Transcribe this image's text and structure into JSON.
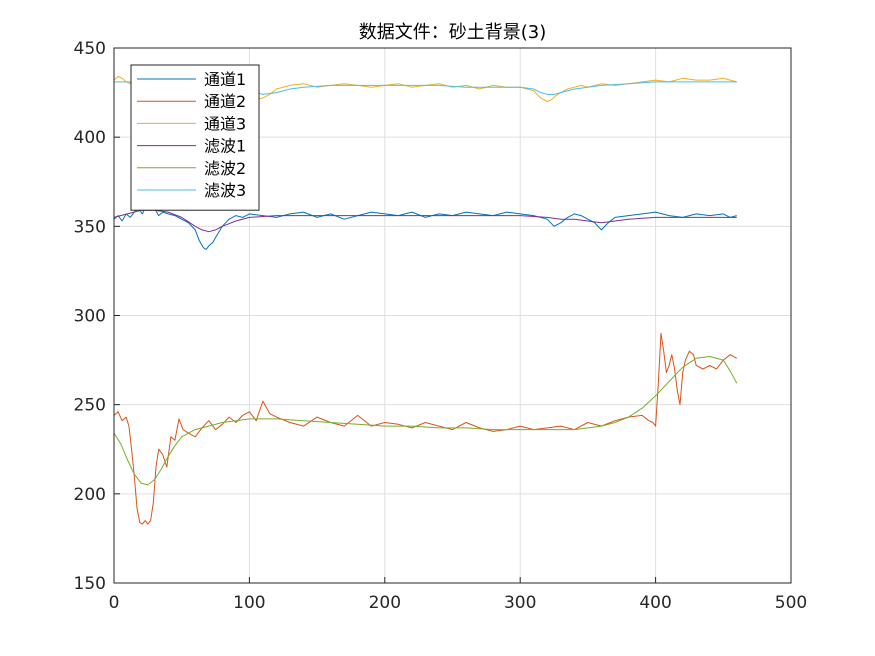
{
  "chart_data": {
    "type": "line",
    "title": "数据文件：砂土背景(3)",
    "xlabel": "",
    "ylabel": "",
    "xlim": [
      0,
      500
    ],
    "ylim": [
      150,
      450
    ],
    "xticks": [
      0,
      100,
      200,
      300,
      400,
      500
    ],
    "yticks": [
      150,
      200,
      250,
      300,
      350,
      400,
      450
    ],
    "grid": true,
    "legend_position": "top-left",
    "series": [
      {
        "name": "通道1",
        "color": "#0072BD",
        "x": [
          0,
          3,
          6,
          9,
          12,
          15,
          18,
          21,
          24,
          27,
          30,
          33,
          36,
          40,
          45,
          50,
          55,
          60,
          63,
          66,
          68,
          70,
          73,
          76,
          80,
          85,
          90,
          95,
          100,
          110,
          120,
          130,
          140,
          150,
          160,
          170,
          180,
          190,
          200,
          210,
          220,
          230,
          240,
          250,
          260,
          270,
          280,
          290,
          300,
          310,
          320,
          325,
          330,
          335,
          340,
          345,
          350,
          355,
          360,
          365,
          370,
          380,
          390,
          400,
          410,
          420,
          430,
          440,
          450,
          455,
          460
        ],
        "y": [
          354,
          356,
          353,
          357,
          355,
          358,
          360,
          357,
          362,
          359,
          360,
          356,
          358,
          357,
          356,
          354,
          352,
          348,
          342,
          338,
          337,
          339,
          341,
          345,
          350,
          354,
          356,
          355,
          357,
          356,
          355,
          357,
          358,
          355,
          357,
          354,
          356,
          358,
          357,
          356,
          358,
          355,
          357,
          356,
          358,
          357,
          356,
          358,
          357,
          356,
          354,
          350,
          352,
          355,
          357,
          356,
          354,
          352,
          348,
          352,
          355,
          356,
          357,
          358,
          356,
          355,
          357,
          356,
          357,
          355,
          356
        ]
      },
      {
        "name": "通道2",
        "color": "#D95319",
        "x": [
          0,
          3,
          6,
          9,
          11,
          13,
          15,
          17,
          19,
          21,
          23,
          25,
          27,
          29,
          31,
          33,
          36,
          39,
          42,
          45,
          48,
          51,
          55,
          60,
          65,
          70,
          75,
          80,
          85,
          90,
          95,
          100,
          105,
          110,
          115,
          120,
          130,
          140,
          150,
          160,
          170,
          180,
          190,
          200,
          210,
          220,
          230,
          240,
          250,
          260,
          270,
          280,
          290,
          300,
          310,
          320,
          330,
          340,
          350,
          360,
          370,
          380,
          390,
          395,
          398,
          400,
          402,
          404,
          406,
          408,
          410,
          412,
          414,
          416,
          418,
          420,
          422,
          425,
          428,
          430,
          435,
          440,
          445,
          450,
          455,
          460
        ],
        "y": [
          244,
          246,
          241,
          243,
          238,
          225,
          210,
          192,
          184,
          183,
          185,
          183,
          185,
          195,
          215,
          225,
          222,
          215,
          232,
          230,
          242,
          236,
          234,
          232,
          237,
          241,
          236,
          239,
          243,
          240,
          244,
          246,
          241,
          252,
          245,
          243,
          240,
          238,
          243,
          240,
          238,
          244,
          238,
          240,
          239,
          237,
          240,
          238,
          236,
          240,
          237,
          235,
          236,
          238,
          236,
          237,
          238,
          236,
          240,
          238,
          241,
          243,
          244,
          241,
          240,
          238,
          262,
          290,
          280,
          268,
          272,
          278,
          270,
          258,
          250,
          268,
          275,
          280,
          278,
          272,
          270,
          272,
          270,
          275,
          278,
          276
        ]
      },
      {
        "name": "通道3",
        "color": "#EDB120",
        "x": [
          0,
          3,
          6,
          9,
          12,
          15,
          18,
          21,
          24,
          27,
          30,
          35,
          40,
          45,
          50,
          55,
          60,
          65,
          70,
          75,
          80,
          85,
          90,
          95,
          100,
          105,
          110,
          115,
          120,
          130,
          140,
          150,
          160,
          170,
          180,
          190,
          200,
          210,
          220,
          230,
          240,
          250,
          260,
          270,
          280,
          290,
          300,
          305,
          310,
          315,
          320,
          323,
          326,
          330,
          335,
          340,
          345,
          350,
          360,
          370,
          380,
          390,
          400,
          410,
          420,
          430,
          440,
          450,
          455,
          460
        ],
        "y": [
          432,
          434,
          433,
          431,
          430,
          435,
          433,
          431,
          434,
          432,
          430,
          432,
          433,
          431,
          432,
          433,
          431,
          430,
          432,
          431,
          429,
          428,
          427,
          426,
          424,
          421,
          422,
          424,
          427,
          429,
          430,
          428,
          429,
          430,
          429,
          428,
          429,
          430,
          428,
          429,
          430,
          428,
          429,
          427,
          429,
          428,
          428,
          427,
          426,
          422,
          420,
          421,
          423,
          425,
          427,
          428,
          429,
          428,
          430,
          429,
          430,
          431,
          432,
          431,
          433,
          432,
          432,
          433,
          432,
          431
        ]
      },
      {
        "name": "滤波1",
        "color": "#7E2F8E",
        "x": [
          0,
          10,
          20,
          30,
          40,
          50,
          60,
          65,
          70,
          75,
          80,
          90,
          100,
          120,
          140,
          160,
          180,
          200,
          220,
          240,
          260,
          280,
          300,
          320,
          330,
          340,
          350,
          360,
          370,
          380,
          400,
          420,
          440,
          460
        ],
        "y": [
          355,
          357,
          359,
          359,
          358,
          355,
          350,
          348,
          347,
          348,
          350,
          353,
          355,
          356,
          356,
          356,
          356,
          356,
          356,
          356,
          356,
          356,
          356,
          355,
          354,
          354,
          353,
          352,
          353,
          354,
          355,
          355,
          355,
          355
        ]
      },
      {
        "name": "滤波2",
        "color": "#77AC30",
        "x": [
          0,
          5,
          10,
          15,
          20,
          25,
          30,
          35,
          40,
          45,
          50,
          60,
          70,
          80,
          90,
          100,
          110,
          120,
          140,
          160,
          180,
          200,
          220,
          240,
          260,
          280,
          300,
          320,
          340,
          360,
          370,
          380,
          390,
          400,
          410,
          420,
          430,
          440,
          450,
          455,
          460
        ],
        "y": [
          234,
          228,
          219,
          211,
          206,
          205,
          208,
          214,
          221,
          227,
          232,
          236,
          238,
          240,
          241,
          242,
          242,
          242,
          241,
          240,
          239,
          238,
          238,
          237,
          237,
          236,
          236,
          236,
          236,
          238,
          240,
          243,
          248,
          255,
          263,
          271,
          276,
          277,
          275,
          269,
          262
        ]
      },
      {
        "name": "滤波3",
        "color": "#4DBEEE",
        "x": [
          0,
          10,
          20,
          30,
          40,
          50,
          60,
          70,
          80,
          90,
          100,
          110,
          120,
          130,
          140,
          160,
          180,
          200,
          220,
          240,
          260,
          280,
          300,
          310,
          315,
          320,
          325,
          330,
          340,
          350,
          360,
          380,
          400,
          420,
          440,
          460
        ],
        "y": [
          431,
          431,
          431,
          431,
          431,
          431,
          431,
          431,
          430,
          428,
          426,
          424,
          425,
          427,
          428,
          429,
          429,
          429,
          429,
          429,
          428,
          428,
          428,
          427,
          425,
          424,
          424,
          425,
          427,
          428,
          429,
          430,
          431,
          431,
          431,
          431
        ]
      }
    ]
  }
}
